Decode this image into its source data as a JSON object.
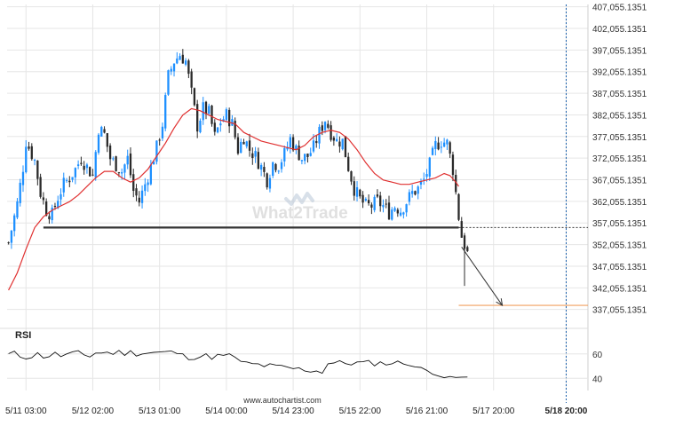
{
  "watermark": "What2Trade",
  "footer_url": "www.autochartist.com",
  "chart_data": [
    {
      "type": "candlestick",
      "y_tick_labels": [
        "407,055.1351",
        "402,055.1351",
        "397,055.1351",
        "392,055.1351",
        "387,055.1351",
        "382,055.1351",
        "377,055.1351",
        "372,055.1351",
        "367,055.1351",
        "362,055.1351",
        "357,055.1351",
        "352,055.1351",
        "347,055.1351",
        "342,055.1351",
        "337,055.1351"
      ],
      "y_ticks": [
        407055.1351,
        402055.1351,
        397055.1351,
        392055.1351,
        387055.1351,
        382055.1351,
        377055.1351,
        372055.1351,
        367055.1351,
        362055.1351,
        357055.1351,
        352055.1351,
        347055.1351,
        342055.1351,
        337055.1351
      ],
      "ylim": [
        333500,
        407600
      ],
      "x_tick_labels": [
        "5/11 03:00",
        "5/12 02:00",
        "5/13 01:00",
        "5/14 00:00",
        "5/14 23:00",
        "5/15 22:00",
        "5/16 21:00",
        "5/17 20:00",
        "5/18 20:00"
      ],
      "x_tick_index": [
        6,
        29,
        52,
        75,
        98,
        121,
        144,
        167,
        192
      ],
      "n_candles": 200,
      "current_index": 192,
      "close_path": [
        [
          0,
          352500
        ],
        [
          3,
          361500
        ],
        [
          5,
          370000
        ],
        [
          6,
          376000
        ],
        [
          9,
          371500
        ],
        [
          11,
          364000
        ],
        [
          13,
          360000
        ],
        [
          15,
          359000
        ],
        [
          17,
          363000
        ],
        [
          19,
          366000
        ],
        [
          21,
          367500
        ],
        [
          23,
          369500
        ],
        [
          25,
          372000
        ],
        [
          27,
          370000
        ],
        [
          29,
          368000
        ],
        [
          31,
          379000
        ],
        [
          33,
          377500
        ],
        [
          35,
          372000
        ],
        [
          37,
          370500
        ],
        [
          39,
          369000
        ],
        [
          41,
          372000
        ],
        [
          43,
          364500
        ],
        [
          45,
          362000
        ],
        [
          47,
          366000
        ],
        [
          49,
          370000
        ],
        [
          51,
          374500
        ],
        [
          53,
          380000
        ],
        [
          55,
          391000
        ],
        [
          57,
          394500
        ],
        [
          59,
          396000
        ],
        [
          61,
          394500
        ],
        [
          63,
          387000
        ],
        [
          65,
          379500
        ],
        [
          67,
          383500
        ],
        [
          69,
          382500
        ],
        [
          71,
          377000
        ],
        [
          73,
          380500
        ],
        [
          75,
          382000
        ],
        [
          77,
          380000
        ],
        [
          79,
          374000
        ],
        [
          81,
          377000
        ],
        [
          83,
          374000
        ],
        [
          85,
          372500
        ],
        [
          87,
          370000
        ],
        [
          89,
          367000
        ],
        [
          91,
          371000
        ],
        [
          93,
          370500
        ],
        [
          95,
          373000
        ],
        [
          97,
          376500
        ],
        [
          99,
          374000
        ],
        [
          101,
          372000
        ],
        [
          103,
          372500
        ],
        [
          105,
          374500
        ],
        [
          107,
          378000
        ],
        [
          109,
          381000
        ],
        [
          111,
          378000
        ],
        [
          113,
          376000
        ],
        [
          115,
          376000
        ],
        [
          117,
          370000
        ],
        [
          119,
          365000
        ],
        [
          121,
          362500
        ],
        [
          123,
          361000
        ],
        [
          125,
          361000
        ],
        [
          127,
          362000
        ],
        [
          129,
          361000
        ],
        [
          131,
          359500
        ],
        [
          133,
          361000
        ],
        [
          135,
          360000
        ],
        [
          137,
          362000
        ],
        [
          139,
          364000
        ],
        [
          141,
          365000
        ],
        [
          143,
          367000
        ],
        [
          145,
          370500
        ],
        [
          147,
          375000
        ],
        [
          149,
          376000
        ],
        [
          151,
          375500
        ],
        [
          153,
          369500
        ],
        [
          154,
          364000
        ],
        [
          155,
          358500
        ],
        [
          156,
          354000
        ],
        [
          157,
          352000
        ],
        [
          158,
          350000
        ]
      ],
      "ma_points": [
        [
          0,
          341500
        ],
        [
          3,
          345500
        ],
        [
          6,
          351000
        ],
        [
          9,
          356000
        ],
        [
          12,
          358500
        ],
        [
          15,
          360000
        ],
        [
          18,
          361000
        ],
        [
          21,
          362000
        ],
        [
          24,
          363500
        ],
        [
          27,
          365500
        ],
        [
          30,
          367500
        ],
        [
          33,
          369000
        ],
        [
          36,
          369000
        ],
        [
          39,
          367500
        ],
        [
          42,
          366500
        ],
        [
          45,
          367500
        ],
        [
          48,
          369500
        ],
        [
          51,
          372500
        ],
        [
          54,
          375500
        ],
        [
          57,
          379000
        ],
        [
          60,
          382000
        ],
        [
          63,
          383500
        ],
        [
          66,
          383000
        ],
        [
          69,
          382000
        ],
        [
          72,
          381000
        ],
        [
          75,
          380500
        ],
        [
          78,
          380000
        ],
        [
          81,
          378000
        ],
        [
          84,
          377000
        ],
        [
          87,
          376000
        ],
        [
          90,
          375500
        ],
        [
          93,
          375000
        ],
        [
          96,
          374500
        ],
        [
          99,
          374000
        ],
        [
          102,
          375000
        ],
        [
          105,
          377000
        ],
        [
          108,
          378000
        ],
        [
          111,
          378500
        ],
        [
          114,
          378000
        ],
        [
          117,
          376500
        ],
        [
          120,
          374000
        ],
        [
          123,
          371000
        ],
        [
          126,
          368500
        ],
        [
          129,
          367000
        ],
        [
          132,
          366500
        ],
        [
          135,
          366000
        ],
        [
          138,
          366000
        ],
        [
          141,
          366500
        ],
        [
          144,
          367000
        ],
        [
          147,
          367500
        ],
        [
          150,
          368500
        ],
        [
          152,
          368000
        ],
        [
          154,
          366500
        ],
        [
          155,
          365500
        ]
      ],
      "candle_seed": 7,
      "horizontal_level": {
        "value": 356000,
        "from_index": 12,
        "to_index": 155
      },
      "forecast": {
        "from_index": 156,
        "from_value": 351500,
        "to_index": 170,
        "to_value": 338000
      },
      "target_level": {
        "value": 338000,
        "from_index": 155,
        "to_index": 168
      },
      "series": [
        {
          "name": "",
          "role": "price",
          "color": "#222222"
        },
        {
          "name": "",
          "role": "moving-average",
          "color": "#e03030"
        }
      ],
      "colors": {
        "up": "#1e90ff",
        "down": "#2a2a2a",
        "support": "#333333",
        "forecast": "#333333",
        "target": "#f0a060",
        "current_line": "#1a5faa",
        "grid": "#e6e6e6"
      }
    },
    {
      "type": "line",
      "title": "RSI",
      "y_tick_labels": [
        "60",
        "40"
      ],
      "y_ticks": [
        60,
        40
      ],
      "ylim": [
        30,
        70
      ],
      "rsi_seed": 11,
      "color": "#111111"
    }
  ]
}
